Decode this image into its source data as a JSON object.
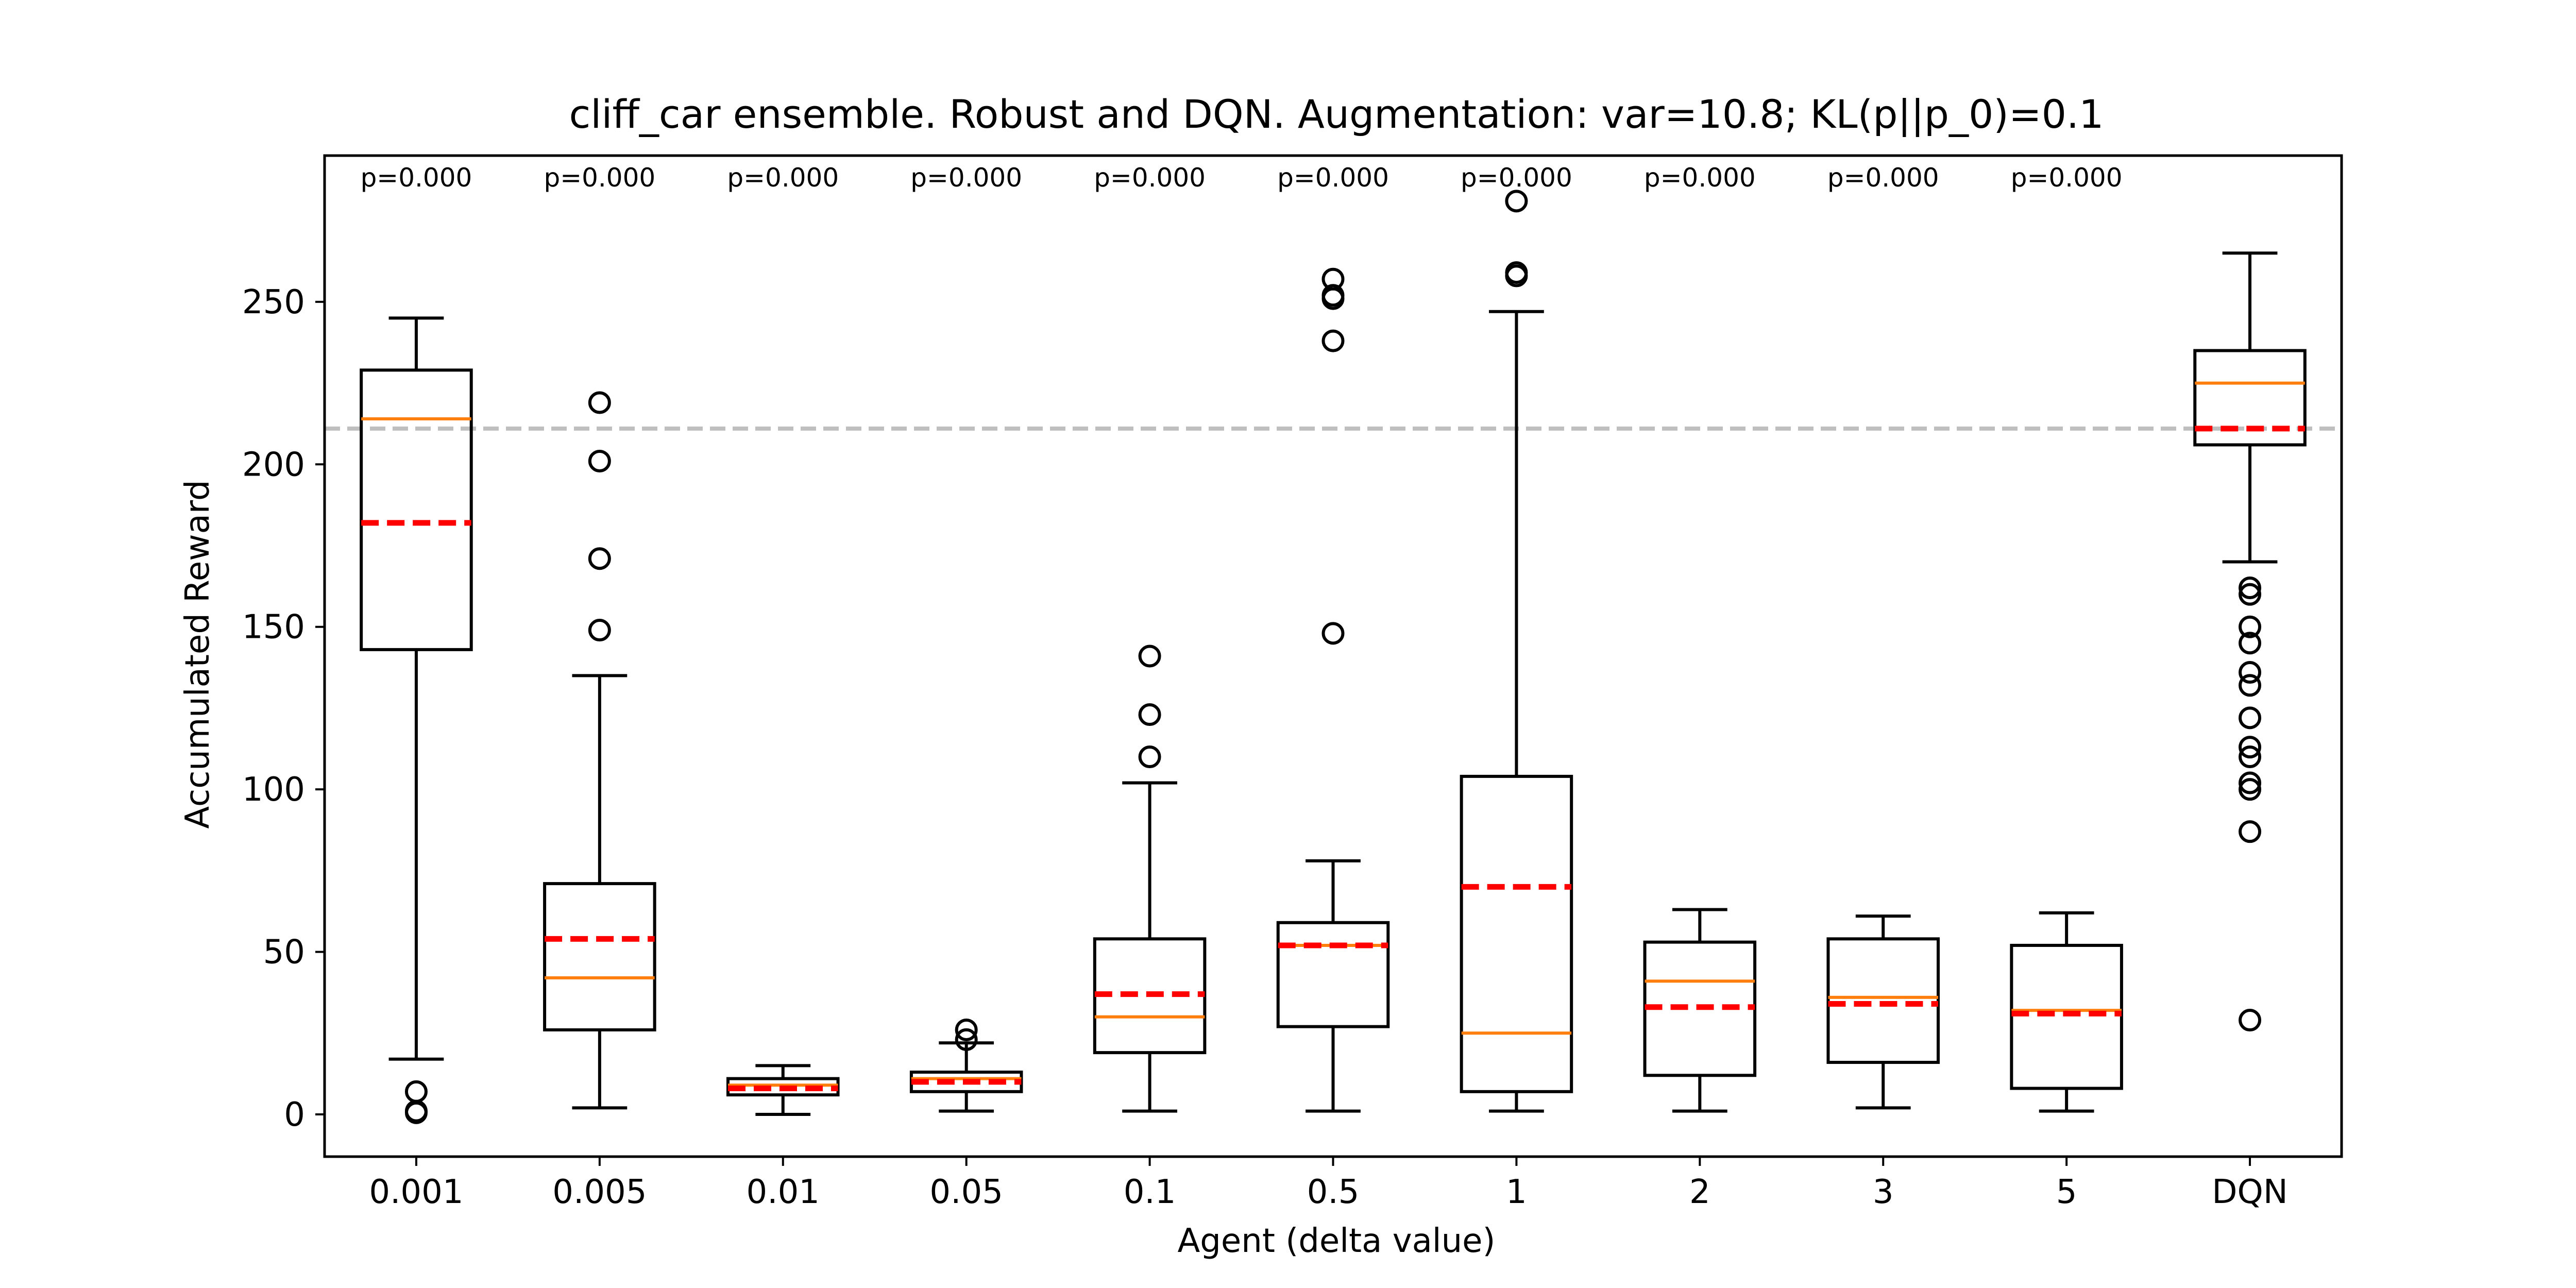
{
  "chart_data": {
    "type": "box",
    "title": "cliff_car ensemble. Robust and DQN. Augmentation: var=10.8; KL(p||p_0)=0.1",
    "xlabel": "Agent (delta value)",
    "ylabel": "Accumulated Reward",
    "ylim": [
      -13,
      295
    ],
    "yticks": [
      0,
      50,
      100,
      150,
      200,
      250
    ],
    "reference_line": 211,
    "categories": [
      "0.001",
      "0.005",
      "0.01",
      "0.05",
      "0.1",
      "0.5",
      "1",
      "2",
      "3",
      "5",
      "DQN"
    ],
    "p_values": [
      "p=0.000",
      "p=0.000",
      "p=0.000",
      "p=0.000",
      "p=0.000",
      "p=0.000",
      "p=0.000",
      "p=0.000",
      "p=0.000",
      "p=0.000",
      ""
    ],
    "boxes": [
      {
        "whislo": 17,
        "q1": 143,
        "median": 214,
        "mean": 182,
        "q3": 229,
        "whishi": 245,
        "fliers": [
          7,
          1,
          0.5
        ]
      },
      {
        "whislo": 2,
        "q1": 26,
        "median": 42,
        "mean": 54,
        "q3": 71,
        "whishi": 135,
        "fliers": [
          149,
          171,
          201,
          219
        ]
      },
      {
        "whislo": 0,
        "q1": 6,
        "median": 9,
        "mean": 8,
        "q3": 11,
        "whishi": 15,
        "fliers": []
      },
      {
        "whislo": 1,
        "q1": 7,
        "median": 11,
        "mean": 10,
        "q3": 13,
        "whishi": 22,
        "fliers": [
          23,
          26
        ]
      },
      {
        "whislo": 1,
        "q1": 19,
        "median": 30,
        "mean": 37,
        "q3": 54,
        "whishi": 102,
        "fliers": [
          110,
          123,
          141
        ]
      },
      {
        "whislo": 1,
        "q1": 27,
        "median": 52,
        "mean": 52,
        "q3": 59,
        "whishi": 78,
        "fliers": [
          148,
          238,
          251,
          252,
          257
        ]
      },
      {
        "whislo": 1,
        "q1": 7,
        "median": 25,
        "mean": 70,
        "q3": 104,
        "whishi": 247,
        "fliers": [
          258,
          259,
          281
        ]
      },
      {
        "whislo": 1,
        "q1": 12,
        "median": 41,
        "mean": 33,
        "q3": 53,
        "whishi": 63,
        "fliers": []
      },
      {
        "whislo": 2,
        "q1": 16,
        "median": 36,
        "mean": 34,
        "q3": 54,
        "whishi": 61,
        "fliers": []
      },
      {
        "whislo": 1,
        "q1": 8,
        "median": 32,
        "mean": 31,
        "q3": 52,
        "whishi": 62,
        "fliers": []
      },
      {
        "whislo": 170,
        "q1": 206,
        "median": 225,
        "mean": 211,
        "q3": 235,
        "whishi": 265,
        "fliers": [
          160,
          162,
          150,
          145,
          136,
          132,
          122,
          113,
          110,
          102,
          100,
          87,
          29
        ]
      }
    ],
    "colors": {
      "box": "#000000",
      "median": "#ff7f0e",
      "mean": "#ff0000",
      "reference_line": "#bfbfbf"
    }
  }
}
